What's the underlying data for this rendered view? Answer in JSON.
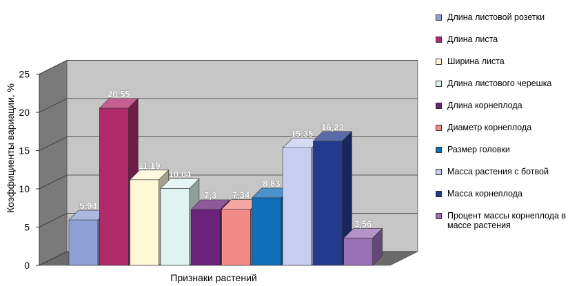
{
  "chart_data": {
    "type": "bar",
    "style": "3d-clustered-column",
    "ylabel": "Коэффициенты вариации, %",
    "xlabel": "Признаки растений",
    "ylim": [
      0,
      25
    ],
    "yticks": [
      "0",
      "5",
      "10",
      "15",
      "20",
      "25"
    ],
    "grid": true,
    "legend_position": "right",
    "series": [
      {
        "name": "Длина листовой розетки",
        "value": 5.94,
        "label": "5,94",
        "color": "#8fa0d6"
      },
      {
        "name": "Длина листа",
        "value": 20.55,
        "label": "20,55",
        "color": "#b0296b"
      },
      {
        "name": "Ширина листа",
        "value": 11.19,
        "label": "11,19",
        "color": "#fff8d6"
      },
      {
        "name": "Длина листового черешка",
        "value": 10.04,
        "label": "10,04",
        "color": "#dff3f0"
      },
      {
        "name": "Длина корнеплода",
        "value": 7.3,
        "label": "7,3",
        "color": "#6a227a"
      },
      {
        "name": "Диаметр корнеплода",
        "value": 7.34,
        "label": "7,34",
        "color": "#f28a86"
      },
      {
        "name": "Размер головки",
        "value": 8.83,
        "label": "8,83",
        "color": "#0f6fb8"
      },
      {
        "name": "Масса растения с ботвой",
        "value": 15.35,
        "label": "15,35",
        "color": "#c9cef0"
      },
      {
        "name": "Масса корнеплода",
        "value": 16.23,
        "label": "16,23",
        "color": "#233a8c"
      },
      {
        "name": "Процент массы корнеплода в массе растения",
        "value": 3.56,
        "label": "3,56",
        "color": "#9b6fb5"
      }
    ],
    "colors": {
      "back_wall": "#c6c6c6",
      "side_wall": "#7a7a7a",
      "floor": "#6a6a6a"
    }
  }
}
